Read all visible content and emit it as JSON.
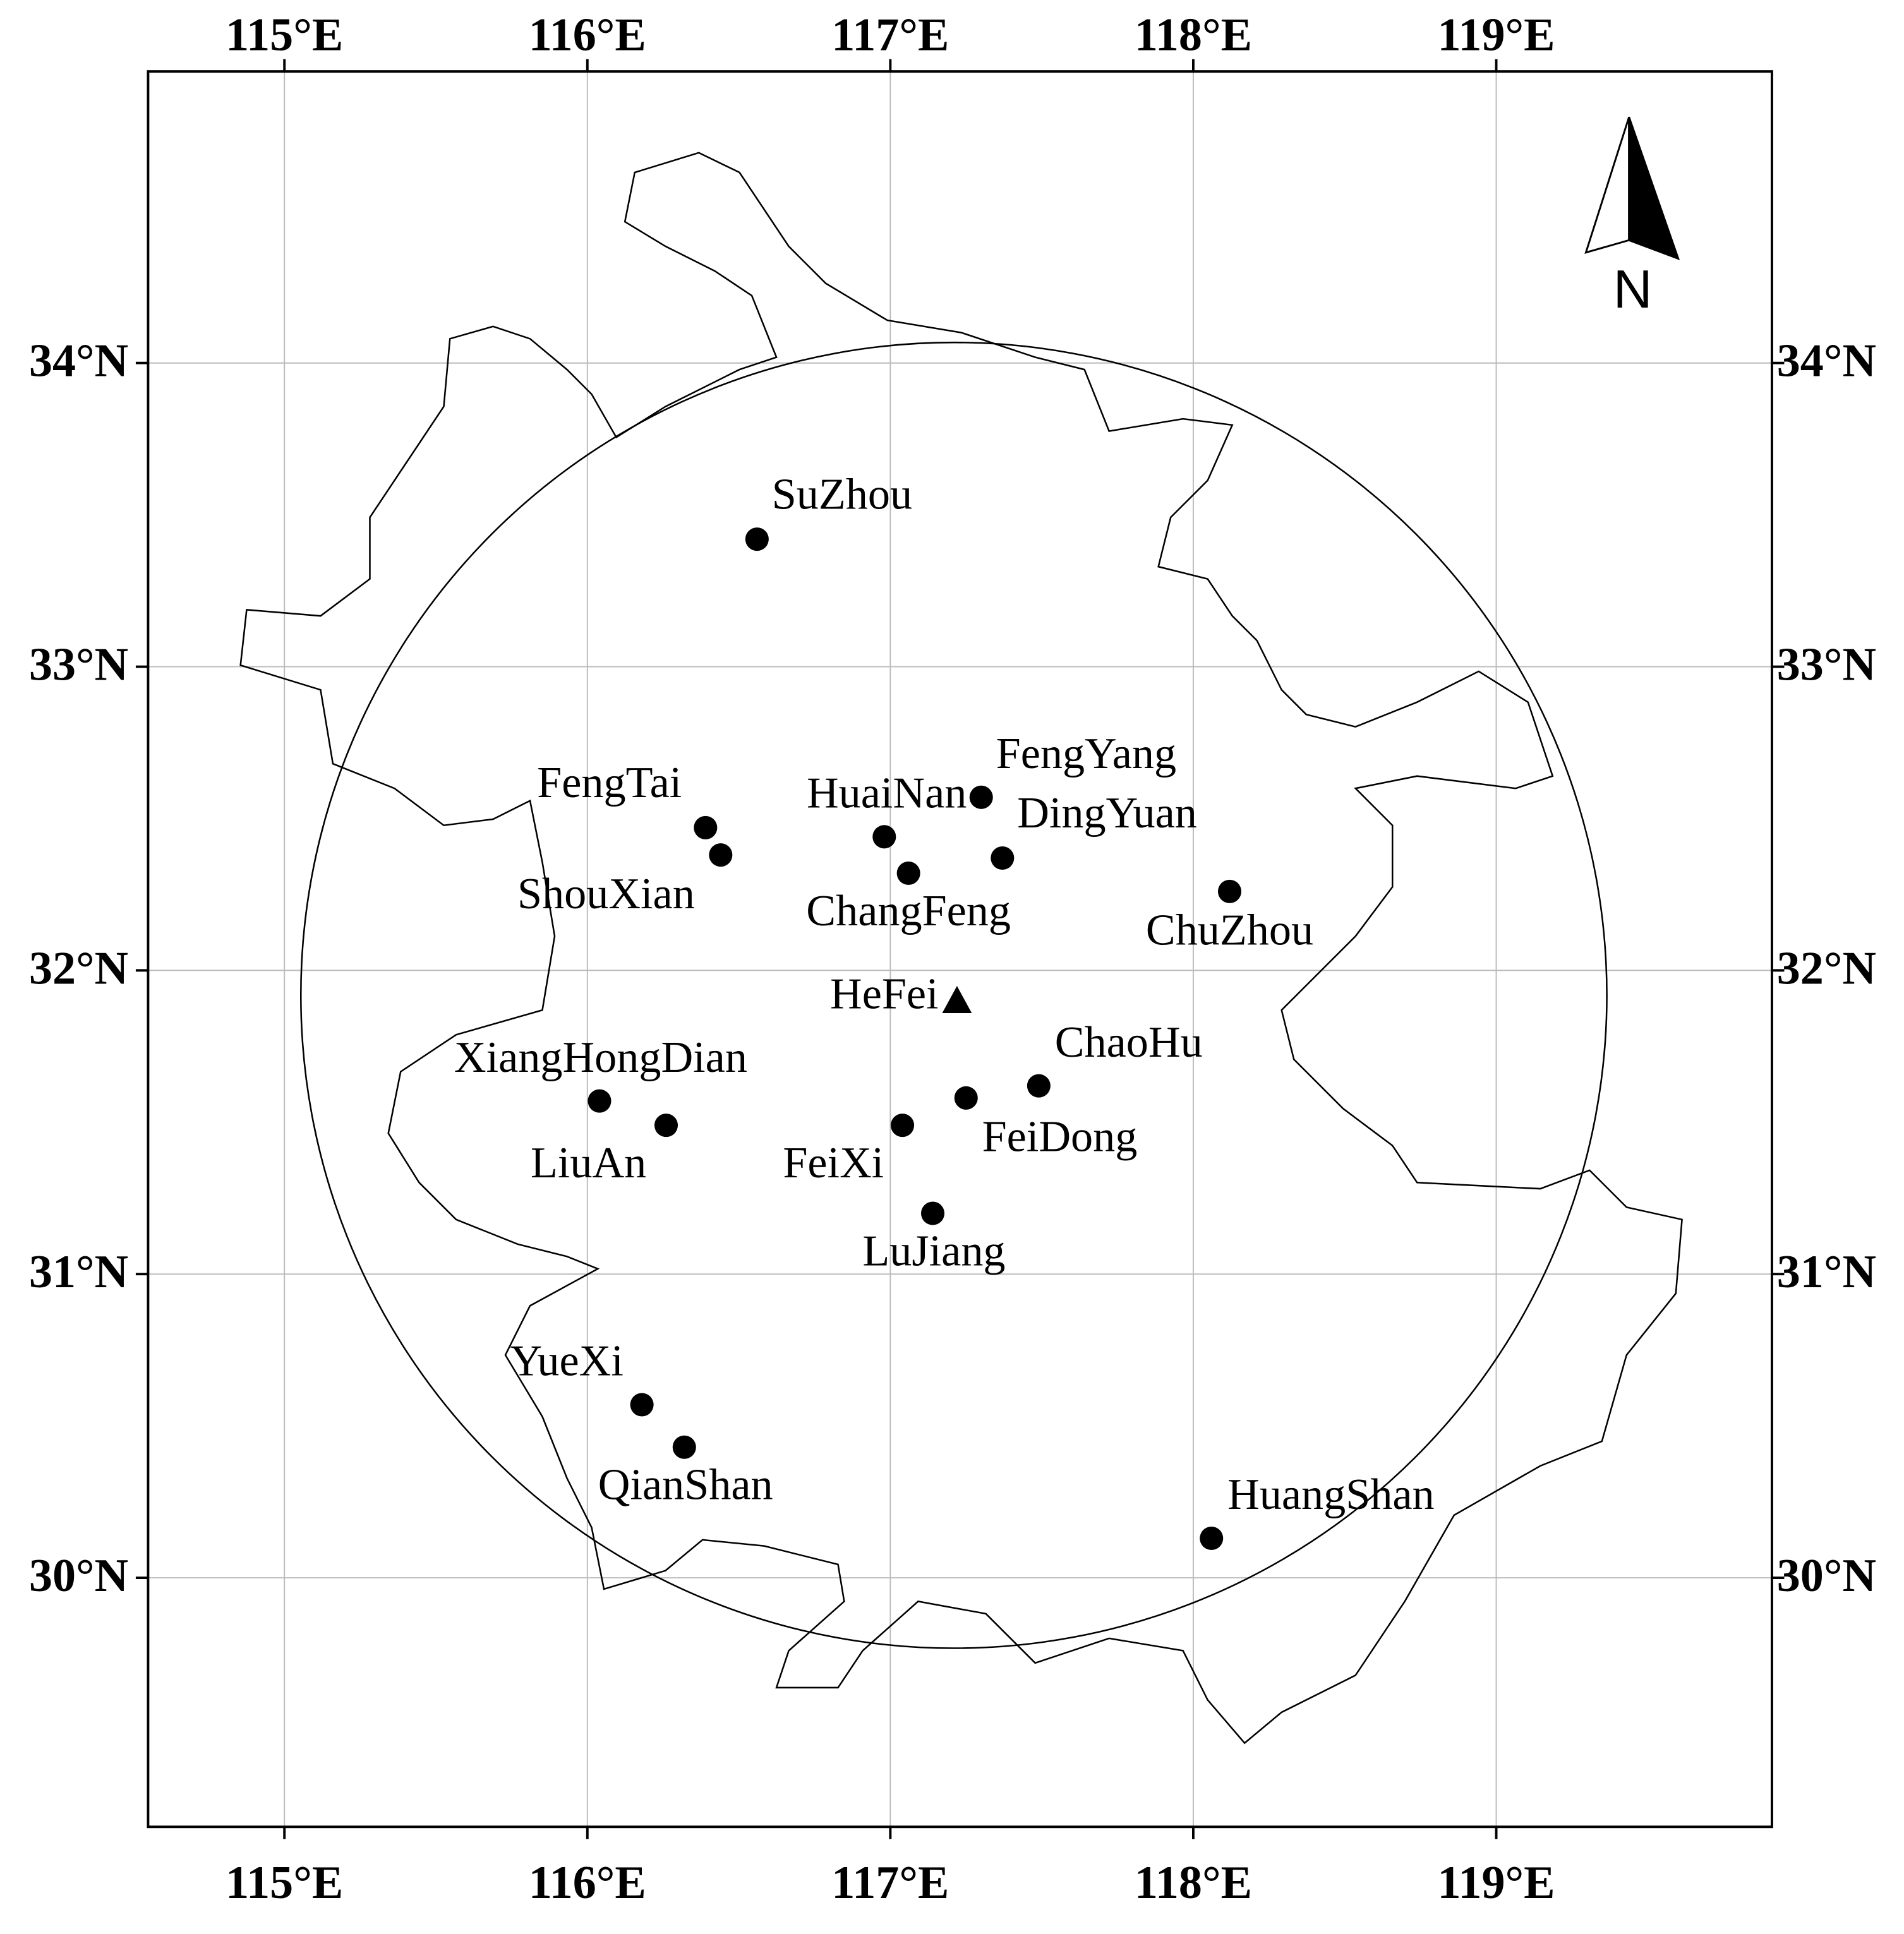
{
  "map": {
    "xlim": [
      114.55,
      119.91
    ],
    "ylim": [
      29.18,
      34.96
    ],
    "xticks": [
      {
        "value": 115,
        "label": "115°E"
      },
      {
        "value": 116,
        "label": "116°E"
      },
      {
        "value": 117,
        "label": "117°E"
      },
      {
        "value": 118,
        "label": "118°E"
      },
      {
        "value": 119,
        "label": "119°E"
      }
    ],
    "yticks": [
      {
        "value": 30,
        "label": "30°N"
      },
      {
        "value": 31,
        "label": "31°N"
      },
      {
        "value": 32,
        "label": "32°N"
      },
      {
        "value": 33,
        "label": "33°N"
      },
      {
        "value": 34,
        "label": "34°N"
      }
    ],
    "north": "N",
    "center": {
      "name": "HeFei",
      "lon": 117.22,
      "lat": 31.9
    },
    "stations": [
      {
        "name": "SuZhou",
        "lon": 116.56,
        "lat": 33.42
      },
      {
        "name": "FengTai",
        "lon": 116.39,
        "lat": 32.47
      },
      {
        "name": "ShouXian",
        "lon": 116.44,
        "lat": 32.38
      },
      {
        "name": "HuaiNan",
        "lon": 116.98,
        "lat": 32.44
      },
      {
        "name": "ChangFeng",
        "lon": 117.06,
        "lat": 32.32
      },
      {
        "name": "FengYang",
        "lon": 117.3,
        "lat": 32.57
      },
      {
        "name": "DingYuan",
        "lon": 117.37,
        "lat": 32.37
      },
      {
        "name": "ChuZhou",
        "lon": 118.12,
        "lat": 32.26
      },
      {
        "name": "XiangHongDian",
        "lon": 116.04,
        "lat": 31.57
      },
      {
        "name": "LiuAn",
        "lon": 116.26,
        "lat": 31.49
      },
      {
        "name": "FeiXi",
        "lon": 117.04,
        "lat": 31.49
      },
      {
        "name": "FeiDong",
        "lon": 117.25,
        "lat": 31.58
      },
      {
        "name": "ChaoHu",
        "lon": 117.49,
        "lat": 31.62
      },
      {
        "name": "LuJiang",
        "lon": 117.14,
        "lat": 31.2
      },
      {
        "name": "YueXi",
        "lon": 116.18,
        "lat": 30.57
      },
      {
        "name": "QianShan",
        "lon": 116.32,
        "lat": 30.43
      },
      {
        "name": "HuangShan",
        "lon": 118.06,
        "lat": 30.13
      }
    ]
  }
}
